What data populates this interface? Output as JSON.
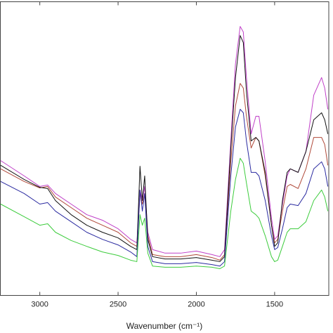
{
  "chart_data": {
    "type": "line",
    "x_label": "Wavenumber (cm⁻¹)",
    "x": [
      3250,
      3100,
      3000,
      2950,
      2900,
      2800,
      2700,
      2600,
      2500,
      2420,
      2380,
      2360,
      2345,
      2330,
      2310,
      2280,
      2200,
      2100,
      2000,
      1900,
      1850,
      1820,
      1780,
      1750,
      1720,
      1700,
      1680,
      1650,
      1620,
      1600,
      1560,
      1520,
      1500,
      1480,
      1450,
      1420,
      1400,
      1350,
      1300,
      1250,
      1200,
      1180,
      1160
    ],
    "xlim": [
      3252,
      1154
    ],
    "xticks": [
      3000,
      2500,
      2000,
      1500
    ],
    "ylim": [
      0,
      100
    ],
    "series": [
      {
        "color": "#c040c8",
        "values": [
          45.9,
          40.7,
          37.1,
          37.6,
          34.7,
          31.1,
          27.5,
          25.6,
          22.7,
          19.1,
          17.9,
          35.9,
          32.3,
          37.1,
          21.5,
          15.6,
          14.4,
          14.4,
          15.1,
          13.9,
          13.2,
          15.6,
          52.6,
          78.9,
          91.6,
          89.7,
          74.2,
          55.0,
          61.0,
          61.0,
          45.5,
          26.3,
          19.1,
          20.3,
          31.1,
          40.7,
          43.1,
          41.9,
          49.0,
          68.2,
          74.2,
          70.6,
          63.4
        ]
      },
      {
        "color": "#b04a3a",
        "values": [
          43.1,
          38.8,
          36.6,
          37.1,
          33.5,
          29.9,
          26.3,
          23.9,
          21.5,
          17.9,
          16.7,
          34.7,
          31.1,
          34.7,
          20.3,
          13.9,
          13.2,
          13.2,
          13.9,
          12.9,
          12.0,
          13.9,
          45.5,
          64.6,
          72.2,
          70.6,
          61.0,
          50.2,
          53.8,
          52.6,
          40.7,
          23.9,
          17.9,
          19.1,
          28.7,
          37.1,
          37.8,
          36.4,
          43.1,
          53.8,
          53.8,
          51.4,
          44.3
        ]
      },
      {
        "color": "#111111",
        "values": [
          44.3,
          39.5,
          36.8,
          36.4,
          32.3,
          27.5,
          23.9,
          21.5,
          19.6,
          16.7,
          15.6,
          44.0,
          32.3,
          40.7,
          19.1,
          13.2,
          12.4,
          12.4,
          12.9,
          12.0,
          11.5,
          13.2,
          50.2,
          74.2,
          88.5,
          86.1,
          69.4,
          52.6,
          53.8,
          52.6,
          41.9,
          23.9,
          16.7,
          17.9,
          32.3,
          41.9,
          43.1,
          41.9,
          49.0,
          59.8,
          62.2,
          59.8,
          55.0
        ]
      },
      {
        "color": "#2a2aa0",
        "values": [
          38.8,
          34.7,
          31.1,
          31.6,
          28.7,
          25.1,
          21.5,
          19.1,
          17.2,
          14.8,
          13.2,
          35.9,
          28.7,
          34.7,
          16.7,
          11.5,
          10.8,
          10.8,
          11.2,
          10.5,
          10.0,
          11.5,
          40.7,
          57.4,
          63.4,
          62.2,
          52.6,
          41.9,
          41.9,
          40.7,
          32.3,
          20.3,
          15.6,
          16.3,
          22.7,
          29.9,
          31.1,
          30.6,
          34.7,
          43.1,
          45.5,
          43.1,
          37.1
        ]
      },
      {
        "color": "#3ccc3c",
        "values": [
          31.1,
          26.8,
          23.9,
          24.4,
          21.5,
          18.7,
          16.7,
          14.8,
          13.6,
          12.0,
          11.5,
          27.5,
          23.9,
          26.3,
          14.4,
          10.0,
          9.6,
          9.6,
          10.0,
          9.6,
          9.1,
          10.0,
          28.7,
          39.5,
          46.7,
          45.0,
          38.3,
          28.7,
          27.5,
          26.3,
          20.3,
          13.2,
          11.5,
          12.0,
          16.7,
          21.5,
          22.7,
          22.7,
          25.1,
          32.3,
          35.9,
          33.5,
          28.7
        ]
      }
    ]
  }
}
